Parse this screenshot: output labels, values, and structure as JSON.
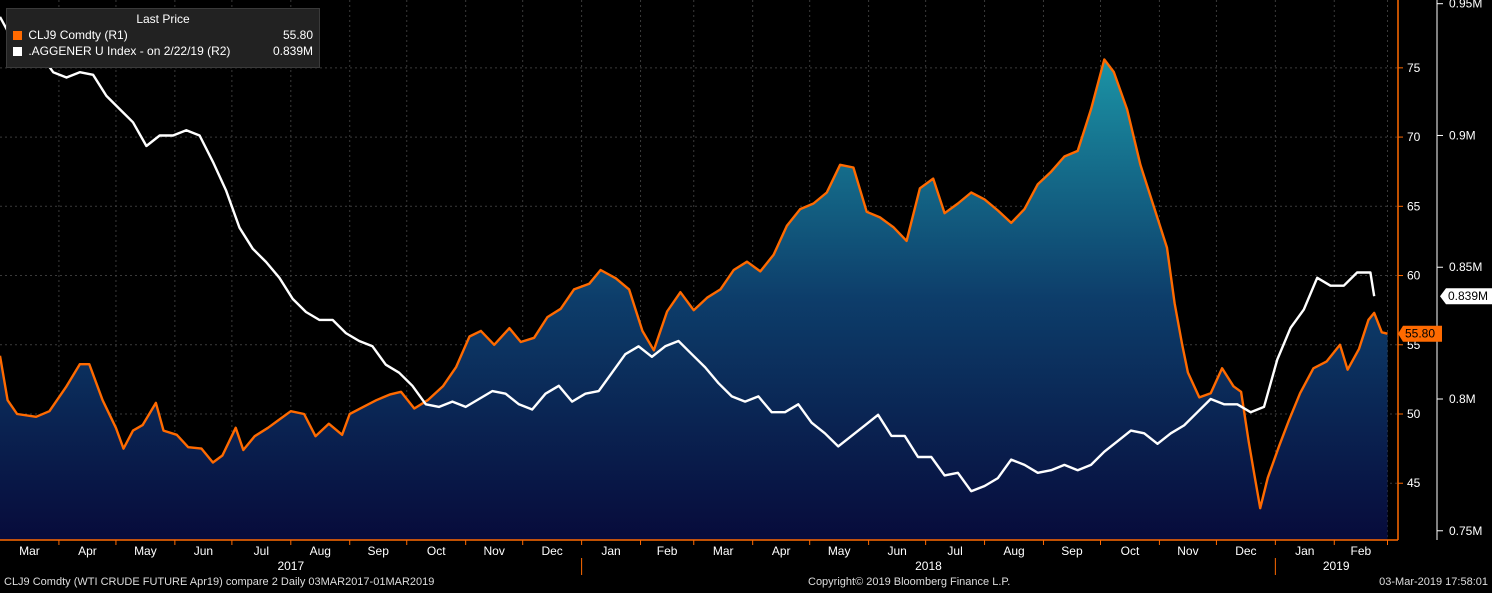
{
  "legend": {
    "header": "Last Price",
    "items": [
      {
        "label": "CLJ9 Comdty  (R1)",
        "value": "55.80",
        "color": "#ff6a00"
      },
      {
        "label": ".AGGENER U Index -  on 2/22/19  (R2)",
        "value": "0.839M",
        "color": "#ffffff"
      }
    ]
  },
  "footer": {
    "left": "CLJ9 Comdty (WTI CRUDE FUTURE  Apr19) compare 2  Daily 03MAR2017-01MAR2019",
    "center": "Copyright© 2019 Bloomberg Finance L.P.",
    "right": "03-Mar-2019 17:58:01"
  },
  "chart_data": {
    "type": "area",
    "x_axis": {
      "months": [
        "Mar",
        "Apr",
        "May",
        "Jun",
        "Jul",
        "Aug",
        "Sep",
        "Oct",
        "Nov",
        "Dec",
        "Jan",
        "Feb",
        "Mar",
        "Apr",
        "May",
        "Jun",
        "Jul",
        "Aug",
        "Sep",
        "Oct",
        "Nov",
        "Dec",
        "Jan",
        "Feb"
      ],
      "years": [
        "2017",
        "2018",
        "2019"
      ]
    },
    "y_axis_right1": {
      "ticks": [
        45,
        50,
        55,
        60,
        65,
        70,
        75
      ],
      "range": [
        40.9,
        79.9
      ]
    },
    "y_axis_right2": {
      "ticks": [
        "0.75M",
        "0.8M",
        "0.85M",
        "0.9M",
        "0.95M"
      ],
      "range": [
        0.7465,
        0.9514
      ]
    },
    "series": [
      {
        "name": "CLJ9 Comdty",
        "axis": "R1",
        "color": "#ff6a00",
        "last_label": "55.80",
        "points": [
          [
            "2017-03-01",
            54.2
          ],
          [
            "2017-03-05",
            51.0
          ],
          [
            "2017-03-10",
            50.0
          ],
          [
            "2017-03-20",
            49.8
          ],
          [
            "2017-03-27",
            50.2
          ],
          [
            "2017-04-05",
            52.0
          ],
          [
            "2017-04-12",
            53.6
          ],
          [
            "2017-04-17",
            53.6
          ],
          [
            "2017-04-24",
            51.0
          ],
          [
            "2017-05-01",
            49.0
          ],
          [
            "2017-05-05",
            47.5
          ],
          [
            "2017-05-10",
            48.8
          ],
          [
            "2017-05-15",
            49.2
          ],
          [
            "2017-05-22",
            50.8
          ],
          [
            "2017-05-26",
            48.8
          ],
          [
            "2017-06-02",
            48.5
          ],
          [
            "2017-06-08",
            47.6
          ],
          [
            "2017-06-15",
            47.5
          ],
          [
            "2017-06-21",
            46.5
          ],
          [
            "2017-06-26",
            47.0
          ],
          [
            "2017-07-03",
            49.0
          ],
          [
            "2017-07-07",
            47.4
          ],
          [
            "2017-07-13",
            48.4
          ],
          [
            "2017-07-20",
            49.0
          ],
          [
            "2017-07-25",
            49.5
          ],
          [
            "2017-08-01",
            50.2
          ],
          [
            "2017-08-08",
            50.0
          ],
          [
            "2017-08-14",
            48.4
          ],
          [
            "2017-08-21",
            49.3
          ],
          [
            "2017-08-28",
            48.5
          ],
          [
            "2017-09-01",
            50.0
          ],
          [
            "2017-09-08",
            50.5
          ],
          [
            "2017-09-15",
            51.0
          ],
          [
            "2017-09-22",
            51.4
          ],
          [
            "2017-09-28",
            51.6
          ],
          [
            "2017-10-05",
            50.4
          ],
          [
            "2017-10-12",
            51.0
          ],
          [
            "2017-10-20",
            52.0
          ],
          [
            "2017-10-27",
            53.4
          ],
          [
            "2017-11-03",
            55.6
          ],
          [
            "2017-11-09",
            56.0
          ],
          [
            "2017-11-16",
            55.0
          ],
          [
            "2017-11-24",
            56.2
          ],
          [
            "2017-11-30",
            55.2
          ],
          [
            "2017-12-07",
            55.5
          ],
          [
            "2017-12-14",
            57.0
          ],
          [
            "2017-12-21",
            57.6
          ],
          [
            "2017-12-28",
            59.0
          ],
          [
            "2018-01-05",
            59.4
          ],
          [
            "2018-01-11",
            60.4
          ],
          [
            "2018-01-19",
            59.8
          ],
          [
            "2018-01-26",
            59.0
          ],
          [
            "2018-02-02",
            56.0
          ],
          [
            "2018-02-08",
            54.6
          ],
          [
            "2018-02-15",
            57.4
          ],
          [
            "2018-02-22",
            58.8
          ],
          [
            "2018-03-01",
            57.5
          ],
          [
            "2018-03-08",
            58.4
          ],
          [
            "2018-03-15",
            59.0
          ],
          [
            "2018-03-22",
            60.4
          ],
          [
            "2018-03-29",
            61.0
          ],
          [
            "2018-04-05",
            60.3
          ],
          [
            "2018-04-12",
            61.5
          ],
          [
            "2018-04-19",
            63.6
          ],
          [
            "2018-04-26",
            64.8
          ],
          [
            "2018-05-03",
            65.2
          ],
          [
            "2018-05-10",
            66.0
          ],
          [
            "2018-05-17",
            68.0
          ],
          [
            "2018-05-24",
            67.8
          ],
          [
            "2018-05-31",
            64.6
          ],
          [
            "2018-06-07",
            64.2
          ],
          [
            "2018-06-14",
            63.5
          ],
          [
            "2018-06-21",
            62.5
          ],
          [
            "2018-06-28",
            66.3
          ],
          [
            "2018-07-05",
            67.0
          ],
          [
            "2018-07-11",
            64.5
          ],
          [
            "2018-07-18",
            65.2
          ],
          [
            "2018-07-25",
            66.0
          ],
          [
            "2018-08-01",
            65.5
          ],
          [
            "2018-08-08",
            64.7
          ],
          [
            "2018-08-15",
            63.8
          ],
          [
            "2018-08-22",
            64.8
          ],
          [
            "2018-08-29",
            66.6
          ],
          [
            "2018-09-05",
            67.5
          ],
          [
            "2018-09-12",
            68.6
          ],
          [
            "2018-09-19",
            69.0
          ],
          [
            "2018-09-26",
            72.0
          ],
          [
            "2018-10-03",
            75.6
          ],
          [
            "2018-10-08",
            74.7
          ],
          [
            "2018-10-15",
            72.0
          ],
          [
            "2018-10-22",
            68.0
          ],
          [
            "2018-10-29",
            65.0
          ],
          [
            "2018-11-05",
            62.0
          ],
          [
            "2018-11-09",
            58.0
          ],
          [
            "2018-11-13",
            55.0
          ],
          [
            "2018-11-16",
            53.0
          ],
          [
            "2018-11-22",
            51.2
          ],
          [
            "2018-11-28",
            51.5
          ],
          [
            "2018-12-04",
            53.3
          ],
          [
            "2018-12-10",
            52.0
          ],
          [
            "2018-12-14",
            51.6
          ],
          [
            "2018-12-18",
            48.0
          ],
          [
            "2018-12-21",
            45.6
          ],
          [
            "2018-12-24",
            43.2
          ],
          [
            "2018-12-28",
            45.4
          ],
          [
            "2019-01-03",
            47.7
          ],
          [
            "2019-01-08",
            49.5
          ],
          [
            "2019-01-14",
            51.5
          ],
          [
            "2019-01-21",
            53.3
          ],
          [
            "2019-01-28",
            53.8
          ],
          [
            "2019-02-04",
            55.0
          ],
          [
            "2019-02-08",
            53.2
          ],
          [
            "2019-02-14",
            54.7
          ],
          [
            "2019-02-19",
            56.8
          ],
          [
            "2019-02-22",
            57.3
          ],
          [
            "2019-02-26",
            55.9
          ],
          [
            "2019-03-01",
            55.8
          ]
        ]
      },
      {
        "name": ".AGGENER U Index",
        "axis": "R2",
        "color": "#ffffff",
        "last_label": "0.839M",
        "points": [
          [
            "2017-03-01",
            0.945
          ],
          [
            "2017-03-10",
            0.933
          ],
          [
            "2017-03-20",
            0.933
          ],
          [
            "2017-03-29",
            0.924
          ],
          [
            "2017-04-05",
            0.922
          ],
          [
            "2017-04-12",
            0.924
          ],
          [
            "2017-04-19",
            0.923
          ],
          [
            "2017-04-26",
            0.915
          ],
          [
            "2017-05-03",
            0.91
          ],
          [
            "2017-05-10",
            0.905
          ],
          [
            "2017-05-17",
            0.896
          ],
          [
            "2017-05-24",
            0.9
          ],
          [
            "2017-05-31",
            0.9
          ],
          [
            "2017-06-07",
            0.902
          ],
          [
            "2017-06-14",
            0.9
          ],
          [
            "2017-06-21",
            0.89
          ],
          [
            "2017-06-28",
            0.879
          ],
          [
            "2017-07-05",
            0.865
          ],
          [
            "2017-07-12",
            0.857
          ],
          [
            "2017-07-19",
            0.852
          ],
          [
            "2017-07-26",
            0.846
          ],
          [
            "2017-08-02",
            0.838
          ],
          [
            "2017-08-09",
            0.833
          ],
          [
            "2017-08-16",
            0.83
          ],
          [
            "2017-08-23",
            0.83
          ],
          [
            "2017-08-30",
            0.825
          ],
          [
            "2017-09-06",
            0.822
          ],
          [
            "2017-09-13",
            0.82
          ],
          [
            "2017-09-20",
            0.813
          ],
          [
            "2017-09-27",
            0.81
          ],
          [
            "2017-10-04",
            0.805
          ],
          [
            "2017-10-11",
            0.798
          ],
          [
            "2017-10-18",
            0.797
          ],
          [
            "2017-10-25",
            0.799
          ],
          [
            "2017-11-01",
            0.797
          ],
          [
            "2017-11-08",
            0.8
          ],
          [
            "2017-11-15",
            0.803
          ],
          [
            "2017-11-22",
            0.802
          ],
          [
            "2017-11-29",
            0.798
          ],
          [
            "2017-12-06",
            0.796
          ],
          [
            "2017-12-13",
            0.802
          ],
          [
            "2017-12-20",
            0.805
          ],
          [
            "2017-12-27",
            0.799
          ],
          [
            "2018-01-03",
            0.802
          ],
          [
            "2018-01-10",
            0.803
          ],
          [
            "2018-01-17",
            0.81
          ],
          [
            "2018-01-24",
            0.817
          ],
          [
            "2018-01-31",
            0.82
          ],
          [
            "2018-02-07",
            0.816
          ],
          [
            "2018-02-14",
            0.82
          ],
          [
            "2018-02-21",
            0.822
          ],
          [
            "2018-02-28",
            0.817
          ],
          [
            "2018-03-07",
            0.812
          ],
          [
            "2018-03-14",
            0.806
          ],
          [
            "2018-03-21",
            0.801
          ],
          [
            "2018-03-28",
            0.799
          ],
          [
            "2018-04-04",
            0.801
          ],
          [
            "2018-04-11",
            0.795
          ],
          [
            "2018-04-18",
            0.795
          ],
          [
            "2018-04-25",
            0.798
          ],
          [
            "2018-05-02",
            0.791
          ],
          [
            "2018-05-09",
            0.787
          ],
          [
            "2018-05-16",
            0.782
          ],
          [
            "2018-05-23",
            0.786
          ],
          [
            "2018-05-30",
            0.79
          ],
          [
            "2018-06-06",
            0.794
          ],
          [
            "2018-06-13",
            0.786
          ],
          [
            "2018-06-20",
            0.786
          ],
          [
            "2018-06-27",
            0.778
          ],
          [
            "2018-07-04",
            0.778
          ],
          [
            "2018-07-11",
            0.771
          ],
          [
            "2018-07-18",
            0.772
          ],
          [
            "2018-07-25",
            0.765
          ],
          [
            "2018-08-01",
            0.767
          ],
          [
            "2018-08-08",
            0.77
          ],
          [
            "2018-08-15",
            0.777
          ],
          [
            "2018-08-22",
            0.775
          ],
          [
            "2018-08-29",
            0.772
          ],
          [
            "2018-09-05",
            0.773
          ],
          [
            "2018-09-12",
            0.775
          ],
          [
            "2018-09-19",
            0.773
          ],
          [
            "2018-09-26",
            0.775
          ],
          [
            "2018-10-03",
            0.78
          ],
          [
            "2018-10-10",
            0.784
          ],
          [
            "2018-10-17",
            0.788
          ],
          [
            "2018-10-24",
            0.787
          ],
          [
            "2018-10-31",
            0.783
          ],
          [
            "2018-11-07",
            0.787
          ],
          [
            "2018-11-14",
            0.79
          ],
          [
            "2018-11-21",
            0.795
          ],
          [
            "2018-11-28",
            0.8
          ],
          [
            "2018-12-05",
            0.798
          ],
          [
            "2018-12-12",
            0.798
          ],
          [
            "2018-12-19",
            0.795
          ],
          [
            "2018-12-26",
            0.797
          ],
          [
            "2019-01-02",
            0.815
          ],
          [
            "2019-01-09",
            0.827
          ],
          [
            "2019-01-16",
            0.834
          ],
          [
            "2019-01-23",
            0.846
          ],
          [
            "2019-01-30",
            0.843
          ],
          [
            "2019-02-06",
            0.843
          ],
          [
            "2019-02-13",
            0.848
          ],
          [
            "2019-02-20",
            0.848
          ],
          [
            "2019-02-22",
            0.839
          ]
        ]
      }
    ]
  }
}
